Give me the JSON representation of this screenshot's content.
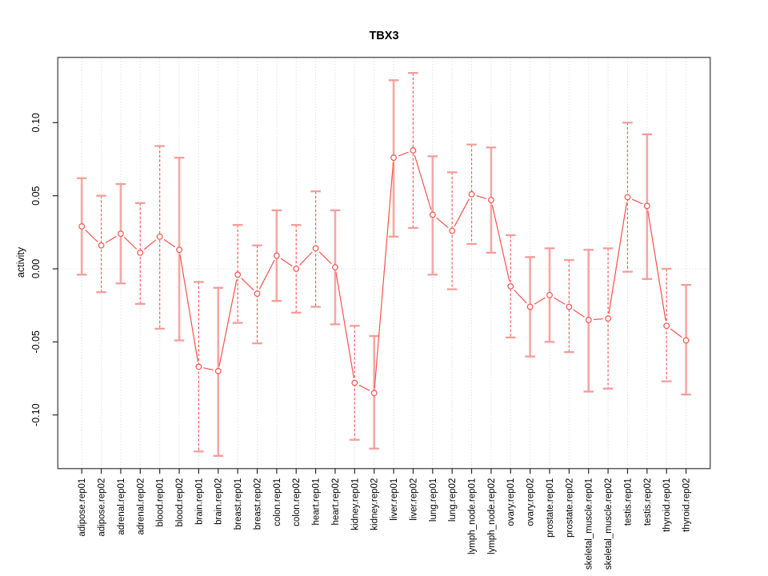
{
  "chart_data": {
    "type": "line",
    "title": "TBX3",
    "xlabel": "",
    "ylabel": "activity",
    "point_style": "open-circle",
    "line_style": "solid segments with gaps around point symbols (R type='b')",
    "grid": "vertical dotted gridline at every category; dotted horizontal line at y=0",
    "legend_position": "none",
    "ylim": [
      -0.137,
      0.145
    ],
    "y_ticks": [
      -0.1,
      -0.05,
      0.0,
      0.05,
      0.1
    ],
    "y_tick_labels": [
      "-0.10",
      "-0.05",
      "0.00",
      "0.05",
      "0.10"
    ],
    "categories": [
      "adipose.rep01",
      "adipose.rep02",
      "adrenal.rep01",
      "adrenal.rep02",
      "blood.rep01",
      "blood.rep02",
      "brain.rep01",
      "brain.rep02",
      "breast.rep01",
      "breast.rep02",
      "colon.rep01",
      "colon.rep02",
      "heart.rep01",
      "heart.rep02",
      "kidney.rep01",
      "kidney.rep02",
      "liver.rep01",
      "liver.rep02",
      "lung.rep01",
      "lung.rep02",
      "lymph_node.rep01",
      "lymph_node.rep02",
      "ovary.rep01",
      "ovary.rep02",
      "prostate.rep01",
      "prostate.rep02",
      "skeletal_muscle.rep01",
      "skeletal_muscle.rep02",
      "testis.rep01",
      "testis.rep02",
      "thyroid.rep01",
      "thyroid.rep02"
    ],
    "values": [
      0.029,
      0.016,
      0.024,
      0.011,
      0.022,
      0.013,
      -0.067,
      -0.07,
      -0.004,
      -0.017,
      0.009,
      0.0,
      0.014,
      0.001,
      -0.078,
      -0.085,
      0.076,
      0.081,
      0.037,
      0.026,
      0.051,
      0.047,
      -0.012,
      -0.026,
      -0.018,
      -0.026,
      -0.035,
      -0.034,
      0.049,
      0.043,
      -0.039,
      -0.049
    ],
    "error_low": [
      -0.004,
      -0.016,
      -0.01,
      -0.024,
      -0.041,
      -0.049,
      -0.125,
      -0.128,
      -0.037,
      -0.051,
      -0.022,
      -0.03,
      -0.026,
      -0.038,
      -0.117,
      -0.123,
      0.022,
      0.028,
      -0.004,
      -0.014,
      0.017,
      0.011,
      -0.047,
      -0.06,
      -0.05,
      -0.057,
      -0.084,
      -0.082,
      -0.002,
      -0.007,
      -0.077,
      -0.086
    ],
    "error_high": [
      0.062,
      0.05,
      0.058,
      0.045,
      0.084,
      0.076,
      -0.009,
      -0.013,
      0.03,
      0.016,
      0.04,
      0.03,
      0.053,
      0.04,
      -0.039,
      -0.046,
      0.129,
      0.134,
      0.077,
      0.066,
      0.085,
      0.083,
      0.023,
      0.008,
      0.014,
      0.006,
      0.013,
      0.014,
      0.1,
      0.092,
      0.0,
      -0.011
    ],
    "error_bar_styles": [
      "solid",
      "dashed",
      "solid",
      "dashed",
      "dashed",
      "solid",
      "dashed",
      "solid",
      "dashed",
      "dashed",
      "solid",
      "dashed",
      "dashed",
      "solid",
      "dashed",
      "solid",
      "solid",
      "dashed",
      "solid",
      "dashed",
      "dashed",
      "solid",
      "dashed",
      "solid",
      "solid",
      "dashed",
      "solid",
      "dashed",
      "dashed",
      "solid",
      "dashed",
      "solid"
    ],
    "colors": {
      "series_line": "#f8514d",
      "point_stroke": "#f8514d",
      "point_fill": "#ffffff",
      "error_bar_solid": "#f7a6a4",
      "error_bar_dashed": "#f3625f",
      "error_bar_cap": "#f59c9a",
      "gridline": "#d4d4d4",
      "zero_line": "#d4d4d4",
      "plot_border": "#5e5e5e",
      "tick": "#2a2a2a",
      "text": "#000000"
    }
  }
}
